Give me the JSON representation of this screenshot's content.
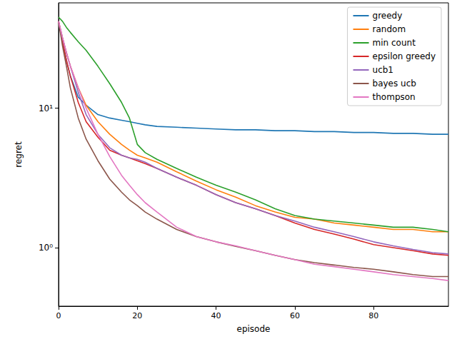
{
  "chart_data": {
    "type": "line",
    "x_label": "episode",
    "y_label": "regret",
    "log": "y",
    "grid": false,
    "legend": "upper right",
    "xlim": [
      0,
      99
    ],
    "xticks": [
      0,
      20,
      40,
      60,
      80
    ],
    "ylim": [
      0.38,
      57
    ],
    "yticks": [
      {
        "value": 1,
        "label": "10⁰"
      },
      {
        "value": 10,
        "label": "10¹"
      }
    ],
    "x": [
      0,
      1,
      2,
      3,
      5,
      7,
      10,
      13,
      16,
      18,
      20,
      22,
      25,
      30,
      35,
      40,
      45,
      50,
      55,
      60,
      65,
      70,
      75,
      80,
      85,
      90,
      95,
      99
    ],
    "series": [
      {
        "name": "greedy",
        "color": "#1f77b4",
        "values": [
          42,
          30,
          22,
          17,
          12,
          10.5,
          9,
          8.5,
          8.2,
          8,
          7.8,
          7.6,
          7.4,
          7.3,
          7.2,
          7.1,
          7.0,
          7.0,
          6.9,
          6.9,
          6.8,
          6.8,
          6.7,
          6.7,
          6.6,
          6.6,
          6.5,
          6.5
        ]
      },
      {
        "name": "random",
        "color": "#ff7f0e",
        "values": [
          42,
          32,
          25,
          20,
          14,
          10.5,
          8,
          6.5,
          5.5,
          5,
          4.6,
          4.4,
          4.1,
          3.5,
          3.0,
          2.6,
          2.3,
          2.0,
          1.8,
          1.65,
          1.6,
          1.5,
          1.45,
          1.4,
          1.35,
          1.35,
          1.3,
          1.3
        ]
      },
      {
        "name": "min count",
        "color": "#2ca02c",
        "values": [
          45,
          42,
          38,
          35,
          30,
          26,
          20,
          15,
          11,
          8.5,
          5.5,
          4.8,
          4.3,
          3.7,
          3.2,
          2.8,
          2.5,
          2.2,
          1.9,
          1.7,
          1.6,
          1.55,
          1.5,
          1.45,
          1.4,
          1.4,
          1.35,
          1.3
        ]
      },
      {
        "name": "epsilon greedy",
        "color": "#d62728",
        "values": [
          42,
          30,
          22,
          17,
          11,
          8,
          6.2,
          5,
          4.6,
          4.4,
          4.2,
          4,
          3.7,
          3.2,
          2.8,
          2.4,
          2.1,
          1.9,
          1.7,
          1.5,
          1.35,
          1.25,
          1.15,
          1.05,
          1.0,
          0.95,
          0.9,
          0.88
        ]
      },
      {
        "name": "ucb1",
        "color": "#9467bd",
        "values": [
          42,
          32,
          25,
          20,
          13,
          9,
          6.5,
          5.2,
          4.6,
          4.4,
          4.3,
          4.1,
          3.7,
          3.2,
          2.8,
          2.4,
          2.1,
          1.9,
          1.7,
          1.55,
          1.4,
          1.3,
          1.2,
          1.1,
          1.03,
          0.97,
          0.92,
          0.9
        ]
      },
      {
        "name": "bayes ucb",
        "color": "#8c564b",
        "values": [
          42,
          28,
          20,
          14,
          8.5,
          6,
          4.2,
          3.1,
          2.5,
          2.2,
          2.0,
          1.8,
          1.6,
          1.35,
          1.2,
          1.1,
          1.02,
          0.95,
          0.88,
          0.82,
          0.78,
          0.75,
          0.72,
          0.7,
          0.67,
          0.64,
          0.62,
          0.62
        ]
      },
      {
        "name": "thompson",
        "color": "#e377c2",
        "values": [
          42,
          32,
          25,
          20,
          14,
          10,
          6.5,
          4.5,
          3.3,
          2.8,
          2.4,
          2.1,
          1.8,
          1.4,
          1.2,
          1.1,
          1.03,
          0.95,
          0.88,
          0.82,
          0.76,
          0.73,
          0.7,
          0.67,
          0.64,
          0.62,
          0.6,
          0.58
        ]
      }
    ]
  }
}
